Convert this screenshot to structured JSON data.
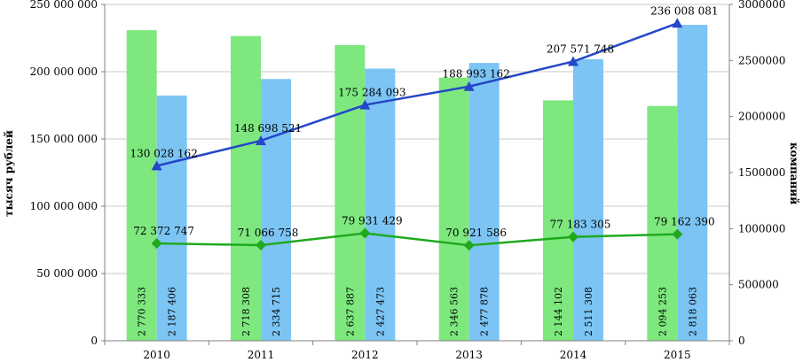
{
  "chart_data": {
    "type": "bar",
    "categories": [
      "2010",
      "2011",
      "2012",
      "2013",
      "2014",
      "2015"
    ],
    "title": "",
    "ylabel_left": "тысяч рублей",
    "ylabel_right": "компаний",
    "ylim_left": [
      0,
      250000000
    ],
    "ylim_right": [
      0,
      3000000
    ],
    "yticks_left": [
      "0",
      "50 000 000",
      "100 000 000",
      "150 000 000",
      "200 000 000",
      "250 000 000"
    ],
    "yticks_right": [
      "0",
      "500000",
      "1000000",
      "1500000",
      "2000000",
      "2500000",
      "3000000"
    ],
    "grid": true,
    "bar_series": [
      {
        "axis": "right",
        "color": "#7ee87e",
        "values": [
          2770333,
          2718308,
          2637887,
          2346563,
          2144102,
          2094253
        ],
        "labels": [
          "2 770 333",
          "2 718 308",
          "2 637 887",
          "2 346 563",
          "2 144 102",
          "2 094 253"
        ]
      },
      {
        "axis": "right",
        "color": "#7cc4f4",
        "values": [
          2187406,
          2334715,
          2427473,
          2477878,
          2511308,
          2818063
        ],
        "labels": [
          "2 187 406",
          "2 334 715",
          "2 427 473",
          "2 477 878",
          "2 511 308",
          "2 818 063"
        ]
      }
    ],
    "line_series": [
      {
        "axis": "left",
        "color": "#2447c8",
        "marker": "triangle",
        "values": [
          130028162,
          148698521,
          175284093,
          188993162,
          207571748,
          236008081
        ],
        "labels": [
          "130 028 162",
          "148 698 521",
          "175 284 093",
          "188 993 162",
          "207 571 748",
          "236 008 081"
        ]
      },
      {
        "axis": "left",
        "color": "#1fa91f",
        "marker": "diamond",
        "values": [
          72372747,
          71066758,
          79931429,
          70921586,
          77183305,
          79162390
        ],
        "labels": [
          "72 372 747",
          "71 066 758",
          "79 931 429",
          "70 921 586",
          "77 183 305",
          "79 162 390"
        ]
      }
    ]
  }
}
